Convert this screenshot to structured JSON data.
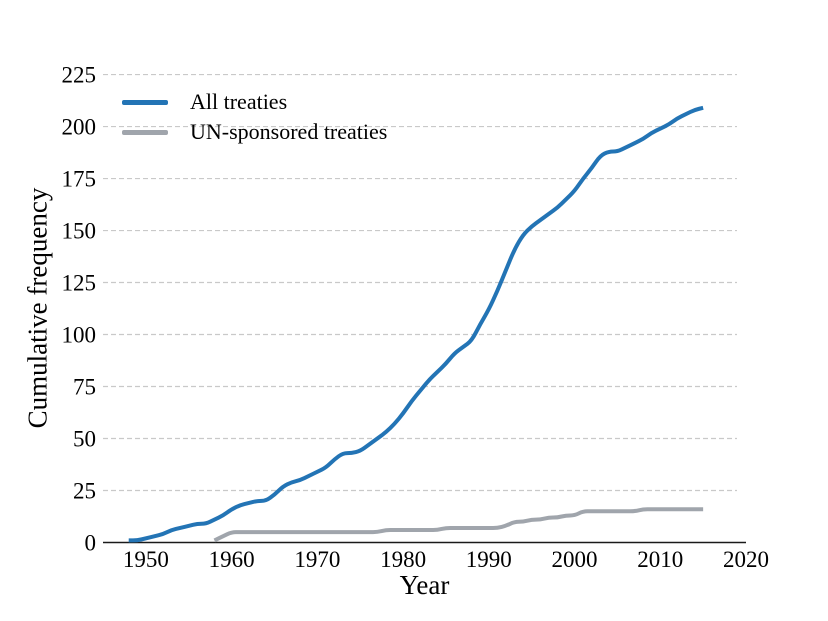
{
  "figure": {
    "background": "#ffffff",
    "text_color": "#000000",
    "grid_color": "#c9c9c9",
    "axis_line_color": "#1a1a1a"
  },
  "legend": {
    "position": "upper-left",
    "items": [
      {
        "label": "All treaties",
        "color": "#2374b5"
      },
      {
        "label": "UN-sponsored treaties",
        "color": "#a0a5ac"
      }
    ]
  },
  "chart_data": {
    "type": "line",
    "title": "",
    "xlabel": "Year",
    "ylabel": "Cumulative frequency",
    "xlim": [
      1945,
      2020
    ],
    "ylim": [
      0,
      232
    ],
    "xticks": [
      1950,
      1960,
      1970,
      1980,
      1990,
      2000,
      2010,
      2020
    ],
    "yticks": [
      0,
      25,
      50,
      75,
      100,
      125,
      150,
      175,
      200,
      225
    ],
    "grid": "horizontal-dashed",
    "legend_position": "upper left",
    "series": [
      {
        "name": "All treaties",
        "color": "#2374b5",
        "x": [
          1948,
          1949,
          1950,
          1951,
          1952,
          1953,
          1954,
          1955,
          1956,
          1957,
          1958,
          1959,
          1960,
          1961,
          1962,
          1963,
          1964,
          1965,
          1966,
          1967,
          1968,
          1969,
          1970,
          1971,
          1972,
          1973,
          1974,
          1975,
          1976,
          1977,
          1978,
          1979,
          1980,
          1981,
          1982,
          1983,
          1984,
          1985,
          1986,
          1987,
          1988,
          1989,
          1990,
          1991,
          1992,
          1993,
          1994,
          1995,
          1996,
          1997,
          1998,
          1999,
          2000,
          2001,
          2002,
          2003,
          2004,
          2005,
          2006,
          2007,
          2008,
          2009,
          2010,
          2011,
          2012,
          2013,
          2014,
          2015
        ],
        "y": [
          1,
          1,
          2,
          3,
          4,
          6,
          7,
          8,
          9,
          9,
          11,
          13,
          16,
          18,
          19,
          20,
          20,
          23,
          27,
          29,
          30,
          32,
          34,
          36,
          40,
          43,
          43,
          44,
          47,
          50,
          53,
          57,
          62,
          68,
          73,
          78,
          82,
          86,
          91,
          94,
          97,
          105,
          112,
          121,
          131,
          141,
          148,
          152,
          155,
          158,
          161,
          165,
          169,
          175,
          180,
          186,
          188,
          188,
          190,
          192,
          194,
          197,
          199,
          201,
          204,
          206,
          208,
          209
        ]
      },
      {
        "name": "UN-sponsored treaties",
        "color": "#a0a5ac",
        "x": [
          1958,
          1959,
          1960,
          1961,
          1962,
          1963,
          1964,
          1965,
          1966,
          1967,
          1968,
          1969,
          1970,
          1971,
          1972,
          1973,
          1974,
          1975,
          1976,
          1977,
          1978,
          1979,
          1980,
          1981,
          1982,
          1983,
          1984,
          1985,
          1986,
          1987,
          1988,
          1989,
          1990,
          1991,
          1992,
          1993,
          1994,
          1995,
          1996,
          1997,
          1998,
          1999,
          2000,
          2001,
          2002,
          2003,
          2004,
          2005,
          2006,
          2007,
          2008,
          2009,
          2010,
          2011,
          2012,
          2013,
          2014,
          2015
        ],
        "y": [
          1,
          3,
          5,
          5,
          5,
          5,
          5,
          5,
          5,
          5,
          5,
          5,
          5,
          5,
          5,
          5,
          5,
          5,
          5,
          5,
          6,
          6,
          6,
          6,
          6,
          6,
          6,
          7,
          7,
          7,
          7,
          7,
          7,
          7,
          8,
          10,
          10,
          11,
          11,
          12,
          12,
          13,
          13,
          15,
          15,
          15,
          15,
          15,
          15,
          15,
          16,
          16,
          16,
          16,
          16,
          16,
          16,
          16
        ]
      }
    ]
  }
}
